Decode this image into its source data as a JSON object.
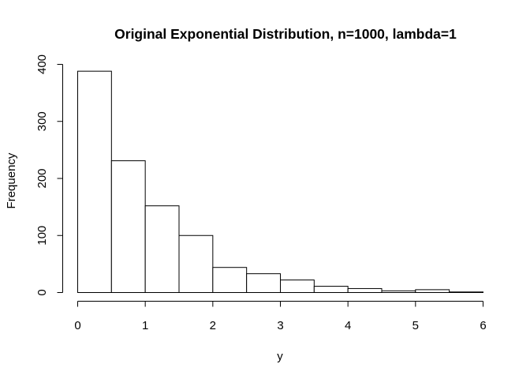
{
  "chart_data": {
    "type": "bar",
    "title": "Original Exponential Distribution, n=1000, lambda=1",
    "xlabel": "y",
    "ylabel": "Frequency",
    "bins": [
      {
        "start": 0.0,
        "end": 0.5,
        "count": 388
      },
      {
        "start": 0.5,
        "end": 1.0,
        "count": 231
      },
      {
        "start": 1.0,
        "end": 1.5,
        "count": 152
      },
      {
        "start": 1.5,
        "end": 2.0,
        "count": 100
      },
      {
        "start": 2.0,
        "end": 2.5,
        "count": 44
      },
      {
        "start": 2.5,
        "end": 3.0,
        "count": 33
      },
      {
        "start": 3.0,
        "end": 3.5,
        "count": 22
      },
      {
        "start": 3.5,
        "end": 4.0,
        "count": 11
      },
      {
        "start": 4.0,
        "end": 4.5,
        "count": 7
      },
      {
        "start": 4.5,
        "end": 5.0,
        "count": 3
      },
      {
        "start": 5.0,
        "end": 5.5,
        "count": 5
      },
      {
        "start": 5.5,
        "end": 6.0,
        "count": 1
      }
    ],
    "xlim": [
      0,
      6
    ],
    "ylim": [
      0,
      400
    ],
    "xticks": [
      0,
      1,
      2,
      3,
      4,
      5,
      6
    ],
    "yticks": [
      0,
      100,
      200,
      300,
      400
    ],
    "grid": false
  }
}
